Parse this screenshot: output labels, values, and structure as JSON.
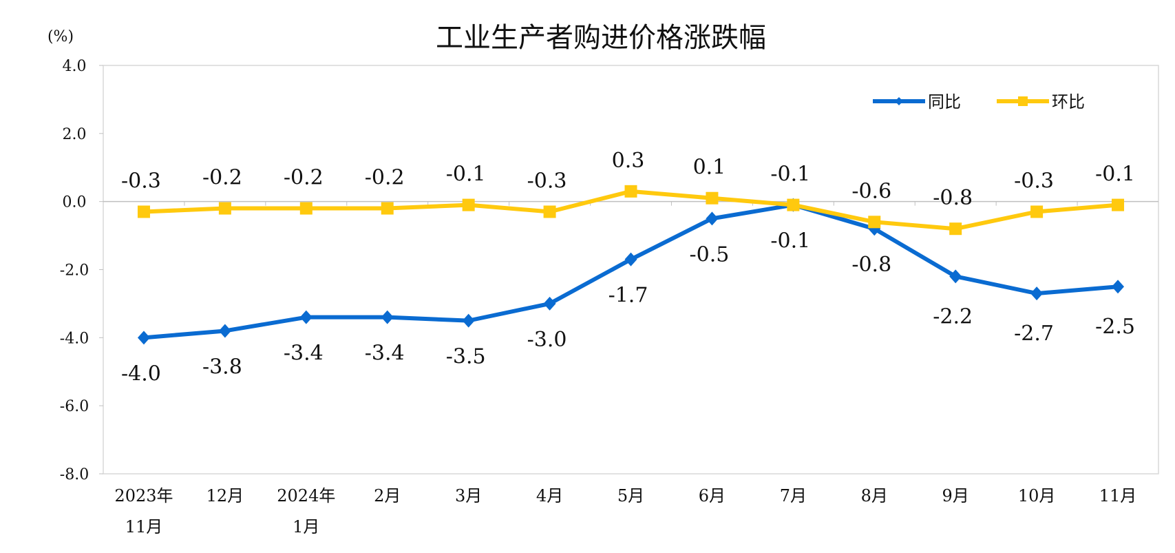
{
  "chart_data": {
    "type": "line",
    "title": "工业生产者购进价格涨跌幅",
    "ylabel": "(%)",
    "ylim": [
      -8.0,
      4.0
    ],
    "yticks": [
      "4.0",
      "2.0",
      "0.0",
      "-2.0",
      "-4.0",
      "-6.0",
      "-8.0"
    ],
    "categories": [
      [
        "2023年",
        "11月"
      ],
      [
        "12月"
      ],
      [
        "2024年",
        "1月"
      ],
      [
        "2月"
      ],
      [
        "3月"
      ],
      [
        "4月"
      ],
      [
        "5月"
      ],
      [
        "6月"
      ],
      [
        "7月"
      ],
      [
        "8月"
      ],
      [
        "9月"
      ],
      [
        "10月"
      ],
      [
        "11月"
      ]
    ],
    "grid": false,
    "legend_position": "top-right",
    "series": [
      {
        "name": "同比",
        "color": "#0A6BD1",
        "marker": "diamond",
        "values": [
          -4.0,
          -3.8,
          -3.4,
          -3.4,
          -3.5,
          -3.0,
          -1.7,
          -0.5,
          -0.1,
          -0.8,
          -2.2,
          -2.7,
          -2.5
        ],
        "labels": [
          "-4.0",
          "-3.8",
          "-3.4",
          "-3.4",
          "-3.5",
          "-3.0",
          "-1.7",
          "-0.5",
          "-0.1",
          "-0.8",
          "-2.2",
          "-2.7",
          "-2.5"
        ]
      },
      {
        "name": "环比",
        "color": "#FFC90E",
        "marker": "square",
        "values": [
          -0.3,
          -0.2,
          -0.2,
          -0.2,
          -0.1,
          -0.3,
          0.3,
          0.1,
          -0.1,
          -0.6,
          -0.8,
          -0.3,
          -0.1
        ],
        "labels": [
          "-0.3",
          "-0.2",
          "-0.2",
          "-0.2",
          "-0.1",
          "-0.3",
          "0.3",
          "0.1",
          "-0.1",
          "-0.6",
          "-0.8",
          "-0.3",
          "-0.1"
        ]
      }
    ]
  }
}
